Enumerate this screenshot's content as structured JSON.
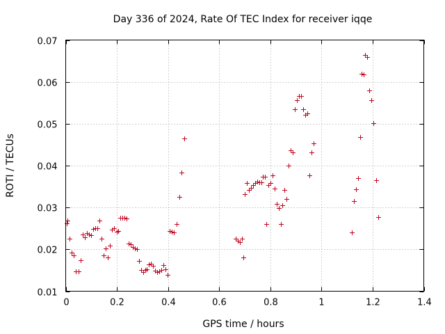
{
  "chart_data": {
    "type": "scatter",
    "title": "Day 336 of 2024, Rate Of TEC Index for receiver iqqe",
    "xlabel": "GPS time / hours",
    "ylabel": "ROTI / TECUs",
    "xlim": [
      0,
      1.4
    ],
    "ylim": [
      0.01,
      0.07
    ],
    "xticks": [
      0,
      0.2,
      0.4,
      0.6,
      0.8,
      1,
      1.2,
      1.4
    ],
    "xtick_labels": [
      "0",
      "0.2",
      "0.4",
      "0.6",
      "0.8",
      "1",
      "1.2",
      "1.4"
    ],
    "yticks": [
      0.01,
      0.02,
      0.03,
      0.04,
      0.05,
      0.06,
      0.07
    ],
    "ytick_labels": [
      "0.01",
      "0.02",
      "0.03",
      "0.04",
      "0.05",
      "0.06",
      "0.07"
    ],
    "grid": true,
    "marker": "+",
    "color": "#c0001a",
    "series": [
      {
        "name": "ROTI",
        "points": [
          [
            0.003,
            0.0262
          ],
          [
            0.008,
            0.0269
          ],
          [
            0.016,
            0.0225
          ],
          [
            0.022,
            0.0193
          ],
          [
            0.03,
            0.0185
          ],
          [
            0.04,
            0.0147
          ],
          [
            0.05,
            0.0147
          ],
          [
            0.058,
            0.0174
          ],
          [
            0.066,
            0.0236
          ],
          [
            0.074,
            0.0229
          ],
          [
            0.084,
            0.0238
          ],
          [
            0.092,
            0.0236
          ],
          [
            0.1,
            0.0233
          ],
          [
            0.108,
            0.0249
          ],
          [
            0.116,
            0.0251
          ],
          [
            0.124,
            0.0251
          ],
          [
            0.132,
            0.0269
          ],
          [
            0.14,
            0.0226
          ],
          [
            0.148,
            0.0185
          ],
          [
            0.156,
            0.0202
          ],
          [
            0.164,
            0.0181
          ],
          [
            0.172,
            0.0209
          ],
          [
            0.182,
            0.0247
          ],
          [
            0.19,
            0.0251
          ],
          [
            0.2,
            0.0242
          ],
          [
            0.206,
            0.0244
          ],
          [
            0.214,
            0.0276
          ],
          [
            0.222,
            0.0276
          ],
          [
            0.23,
            0.0275
          ],
          [
            0.238,
            0.0274
          ],
          [
            0.246,
            0.0214
          ],
          [
            0.254,
            0.0212
          ],
          [
            0.262,
            0.0206
          ],
          [
            0.27,
            0.0202
          ],
          [
            0.278,
            0.02
          ],
          [
            0.286,
            0.0172
          ],
          [
            0.294,
            0.015
          ],
          [
            0.302,
            0.0145
          ],
          [
            0.31,
            0.0151
          ],
          [
            0.318,
            0.0153
          ],
          [
            0.326,
            0.0164
          ],
          [
            0.334,
            0.0165
          ],
          [
            0.342,
            0.016
          ],
          [
            0.35,
            0.0149
          ],
          [
            0.358,
            0.0146
          ],
          [
            0.366,
            0.0148
          ],
          [
            0.374,
            0.015
          ],
          [
            0.382,
            0.0163
          ],
          [
            0.39,
            0.0153
          ],
          [
            0.398,
            0.0139
          ],
          [
            0.406,
            0.0244
          ],
          [
            0.414,
            0.0242
          ],
          [
            0.422,
            0.024
          ],
          [
            0.434,
            0.026
          ],
          [
            0.444,
            0.0325
          ],
          [
            0.453,
            0.0384
          ],
          [
            0.464,
            0.0465
          ],
          [
            0.664,
            0.0226
          ],
          [
            0.672,
            0.0221
          ],
          [
            0.68,
            0.0218
          ],
          [
            0.688,
            0.0225
          ],
          [
            0.694,
            0.018
          ],
          [
            0.7,
            0.0332
          ],
          [
            0.708,
            0.0359
          ],
          [
            0.716,
            0.0342
          ],
          [
            0.724,
            0.0347
          ],
          [
            0.732,
            0.0353
          ],
          [
            0.74,
            0.0359
          ],
          [
            0.748,
            0.0361
          ],
          [
            0.756,
            0.036
          ],
          [
            0.764,
            0.036
          ],
          [
            0.77,
            0.0373
          ],
          [
            0.778,
            0.0374
          ],
          [
            0.784,
            0.0261
          ],
          [
            0.792,
            0.0353
          ],
          [
            0.8,
            0.0358
          ],
          [
            0.808,
            0.0377
          ],
          [
            0.816,
            0.0345
          ],
          [
            0.824,
            0.0309
          ],
          [
            0.832,
            0.0298
          ],
          [
            0.84,
            0.0261
          ],
          [
            0.848,
            0.0306
          ],
          [
            0.856,
            0.0342
          ],
          [
            0.864,
            0.0321
          ],
          [
            0.872,
            0.04
          ],
          [
            0.88,
            0.0436
          ],
          [
            0.888,
            0.0431
          ],
          [
            0.896,
            0.0534
          ],
          [
            0.904,
            0.0556
          ],
          [
            0.912,
            0.0566
          ],
          [
            0.92,
            0.0566
          ],
          [
            0.928,
            0.0535
          ],
          [
            0.936,
            0.0522
          ],
          [
            0.944,
            0.0525
          ],
          [
            0.952,
            0.0376
          ],
          [
            0.96,
            0.0432
          ],
          [
            0.968,
            0.0454
          ],
          [
            1.118,
            0.0241
          ],
          [
            1.126,
            0.0316
          ],
          [
            1.134,
            0.0344
          ],
          [
            1.142,
            0.037
          ],
          [
            1.15,
            0.0468
          ],
          [
            1.158,
            0.062
          ],
          [
            1.164,
            0.0617
          ],
          [
            1.17,
            0.0665
          ],
          [
            1.178,
            0.0659
          ],
          [
            1.186,
            0.058
          ],
          [
            1.194,
            0.0557
          ],
          [
            1.202,
            0.0502
          ],
          [
            1.214,
            0.0365
          ],
          [
            1.222,
            0.0277
          ]
        ]
      }
    ]
  }
}
